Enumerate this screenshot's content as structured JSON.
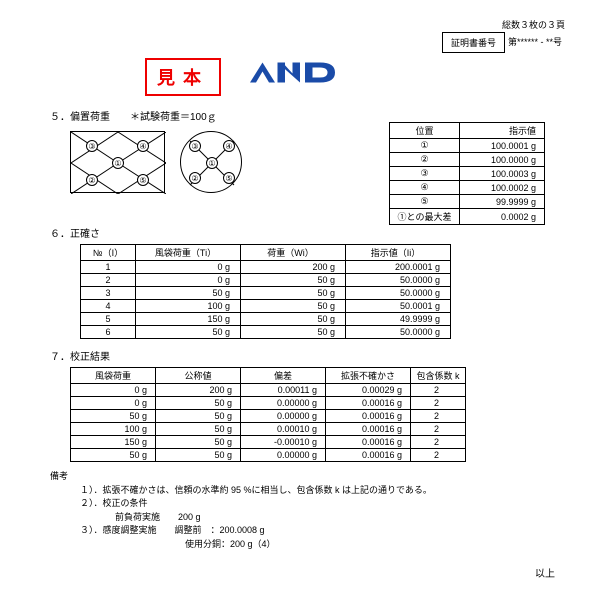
{
  "header": {
    "pageinfo": "総数３枚の３頁",
    "certlabel": "証明書番号",
    "certno": "第****** - **号",
    "stamp": "見本"
  },
  "sec5": {
    "title": "５．偏置荷重　　＊試験荷重＝100ｇ"
  },
  "t5": {
    "h1": "位置",
    "h2": "指示値",
    "rows": [
      [
        "①",
        "100.0001 g"
      ],
      [
        "②",
        "100.0000 g"
      ],
      [
        "③",
        "100.0003 g"
      ],
      [
        "④",
        "100.0002 g"
      ],
      [
        "⑤",
        "99.9999 g"
      ],
      [
        "①との最大差",
        "0.0002 g"
      ]
    ]
  },
  "sec6": {
    "title": "６．正確さ"
  },
  "t6": {
    "h": [
      "№（I）",
      "風袋荷重（Ti）",
      "荷重（Wi）",
      "指示値（Ii）"
    ],
    "rows": [
      [
        "1",
        "0 g",
        "200 g",
        "200.0001 g"
      ],
      [
        "2",
        "0 g",
        "50 g",
        "50.0000 g"
      ],
      [
        "3",
        "50 g",
        "50 g",
        "50.0000 g"
      ],
      [
        "4",
        "100 g",
        "50 g",
        "50.0001 g"
      ],
      [
        "5",
        "150 g",
        "50 g",
        "49.9999 g"
      ],
      [
        "6",
        "50 g",
        "50 g",
        "50.0000 g"
      ]
    ]
  },
  "sec7": {
    "title": "７．校正結果"
  },
  "t7": {
    "h": [
      "風袋荷重",
      "公称値",
      "偏差",
      "拡張不確かさ",
      "包含係数 k"
    ],
    "rows": [
      [
        "0 g",
        "200 g",
        "0.00011 g",
        "0.00029 g",
        "2"
      ],
      [
        "0 g",
        "50 g",
        "0.00000 g",
        "0.00016 g",
        "2"
      ],
      [
        "50 g",
        "50 g",
        "0.00000 g",
        "0.00016 g",
        "2"
      ],
      [
        "100 g",
        "50 g",
        "0.00010 g",
        "0.00016 g",
        "2"
      ],
      [
        "150 g",
        "50 g",
        "-0.00010 g",
        "0.00016 g",
        "2"
      ],
      [
        "50 g",
        "50 g",
        "0.00000 g",
        "0.00016 g",
        "2"
      ]
    ]
  },
  "notes": {
    "h": "備考",
    "n1": "１）．拡張不確かさは、信頼の水準約 95 %に相当し、包含係数 k は上記の通りである。",
    "n2": "２）．校正の条件",
    "n2a": "前負荷実施　　200 g",
    "n3": "３）．感度調整実施　　調整前　：200.0008 g",
    "n3a": "使用分銅：200 g（4）",
    "end": "以上"
  }
}
